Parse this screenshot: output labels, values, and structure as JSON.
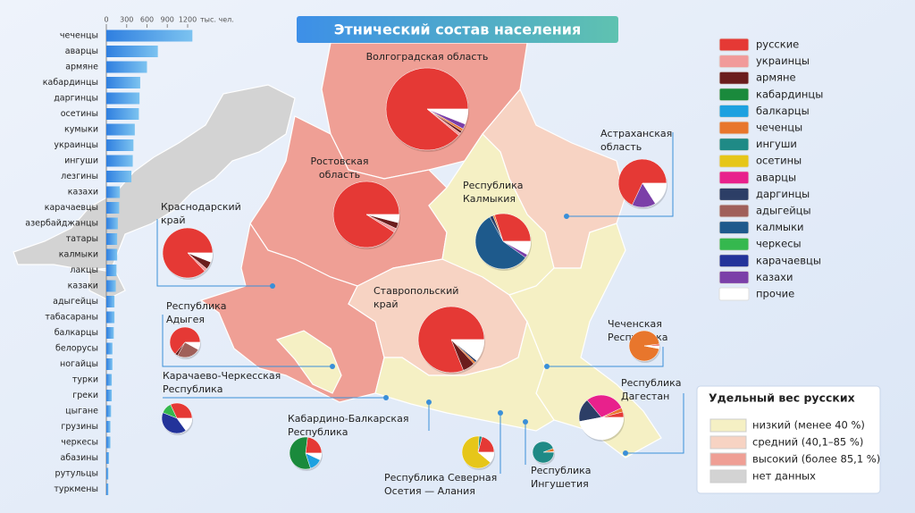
{
  "title": "Этнический состав населения",
  "bar_chart": {
    "unit": "тыс. чел.",
    "xlim": [
      0,
      1200
    ],
    "ticks": [
      0,
      300,
      600,
      900,
      1200
    ],
    "categories": [
      "чеченцы",
      "аварцы",
      "армяне",
      "кабардинцы",
      "даргинцы",
      "осетины",
      "кумыки",
      "украинцы",
      "ингуши",
      "лезгины",
      "казахи",
      "карачаевцы",
      "азербайджанцы",
      "татары",
      "калмыки",
      "лакцы",
      "казаки",
      "адыгейцы",
      "табасараны",
      "балкарцы",
      "белорусы",
      "ногайцы",
      "турки",
      "греки",
      "цыгане",
      "грузины",
      "черкесы",
      "абазины",
      "рутульцы",
      "туркмены"
    ],
    "values": [
      1270,
      760,
      600,
      500,
      490,
      480,
      420,
      400,
      390,
      370,
      200,
      190,
      170,
      160,
      160,
      150,
      140,
      120,
      120,
      110,
      90,
      90,
      80,
      80,
      70,
      60,
      60,
      40,
      30,
      30
    ]
  },
  "legend": {
    "items": [
      {
        "name": "русские",
        "color": "#e53935"
      },
      {
        "name": "украинцы",
        "color": "#f19a9a"
      },
      {
        "name": "армяне",
        "color": "#6b1d1d"
      },
      {
        "name": "кабардинцы",
        "color": "#1a8a3c"
      },
      {
        "name": "балкарцы",
        "color": "#1da1e0"
      },
      {
        "name": "чеченцы",
        "color": "#e8762c"
      },
      {
        "name": "ингуши",
        "color": "#1f8a86"
      },
      {
        "name": "осетины",
        "color": "#e6c619"
      },
      {
        "name": "аварцы",
        "color": "#e8218c"
      },
      {
        "name": "даргинцы",
        "color": "#2c3e66"
      },
      {
        "name": "адыгейцы",
        "color": "#a0605a"
      },
      {
        "name": "калмыки",
        "color": "#1e5a8c"
      },
      {
        "name": "черкесы",
        "color": "#35b84e"
      },
      {
        "name": "карачаевцы",
        "color": "#23339a"
      },
      {
        "name": "казахи",
        "color": "#7b3fa8"
      },
      {
        "name": "прочие",
        "color": "#ffffff"
      }
    ]
  },
  "regions": [
    {
      "label": [
        "Волгоградская область"
      ],
      "shares": [
        89,
        1,
        1,
        0,
        0,
        1,
        0,
        0,
        0,
        0,
        0,
        0,
        0,
        0,
        2,
        6
      ]
    },
    {
      "label": [
        "Ростовская",
        "область"
      ],
      "shares": [
        91,
        2,
        3,
        0,
        0,
        0,
        0,
        0,
        0,
        0,
        0,
        0,
        0,
        0,
        0,
        4
      ]
    },
    {
      "label": [
        "Краснодарский",
        "край"
      ],
      "shares": [
        87,
        2,
        5,
        0,
        0,
        0,
        0,
        0,
        0,
        0,
        0,
        0,
        0,
        0,
        0,
        6
      ]
    },
    {
      "label": [
        "Астраханская",
        "область"
      ],
      "shares": [
        68,
        0,
        0,
        0,
        0,
        0,
        0,
        0,
        0,
        0,
        0,
        0,
        0,
        0,
        16,
        16
      ]
    },
    {
      "label": [
        "Республика",
        "Калмыкия"
      ],
      "shares": [
        30,
        0,
        0,
        0,
        0,
        1,
        0,
        0,
        0,
        2,
        0,
        57,
        0,
        0,
        2,
        8
      ]
    },
    {
      "label": [
        "Ставропольский",
        "край"
      ],
      "shares": [
        81,
        0,
        6,
        0,
        0,
        1,
        0,
        0,
        0,
        1,
        0,
        0,
        0,
        0,
        0,
        11
      ]
    },
    {
      "label": [
        "Республика",
        "Адыгея"
      ],
      "shares": [
        64,
        0,
        3,
        0,
        0,
        0,
        0,
        0,
        0,
        0,
        25,
        0,
        0,
        0,
        0,
        8
      ]
    },
    {
      "label": [
        "Чеченская",
        "Республика"
      ],
      "shares": [
        2,
        0,
        0,
        0,
        0,
        95,
        0,
        0,
        0,
        0,
        0,
        0,
        0,
        0,
        0,
        3
      ]
    },
    {
      "label": [
        "Карачаево-Черкесская",
        "Республика"
      ],
      "shares": [
        32,
        0,
        0,
        0,
        0,
        0,
        0,
        0,
        0,
        0,
        0,
        0,
        12,
        41,
        0,
        15
      ]
    },
    {
      "label": [
        "Республика",
        "Дагестан"
      ],
      "shares": [
        4,
        0,
        0,
        0,
        0,
        3,
        0,
        0,
        29,
        17,
        0,
        0,
        0,
        0,
        0,
        47
      ]
    },
    {
      "label": [
        "Кабардино-Балкарская",
        "Республика"
      ],
      "shares": [
        23,
        0,
        0,
        57,
        13,
        0,
        0,
        0,
        0,
        0,
        0,
        0,
        0,
        0,
        0,
        7
      ]
    },
    {
      "label": [
        "Республика Северная",
        "Осетия — Алания"
      ],
      "shares": [
        21,
        0,
        0,
        0,
        0,
        0,
        3,
        65,
        0,
        0,
        0,
        0,
        0,
        0,
        0,
        11
      ]
    },
    {
      "label": [
        "Республика",
        "Ингушетия"
      ],
      "shares": [
        1,
        0,
        0,
        0,
        0,
        5,
        94,
        0,
        0,
        0,
        0,
        0,
        0,
        0,
        0,
        0
      ]
    }
  ],
  "share_legend": {
    "title": "Удельный вес русских",
    "items": [
      {
        "label": "низкий (менее 40 %)",
        "color": "#f5f0c4"
      },
      {
        "label": "средний (40,1–85 %)",
        "color": "#f7d3c3"
      },
      {
        "label": "высокий (более 85,1 %)",
        "color": "#ef9f95"
      },
      {
        "label": "нет данных",
        "color": "#d3d3d3"
      }
    ]
  }
}
